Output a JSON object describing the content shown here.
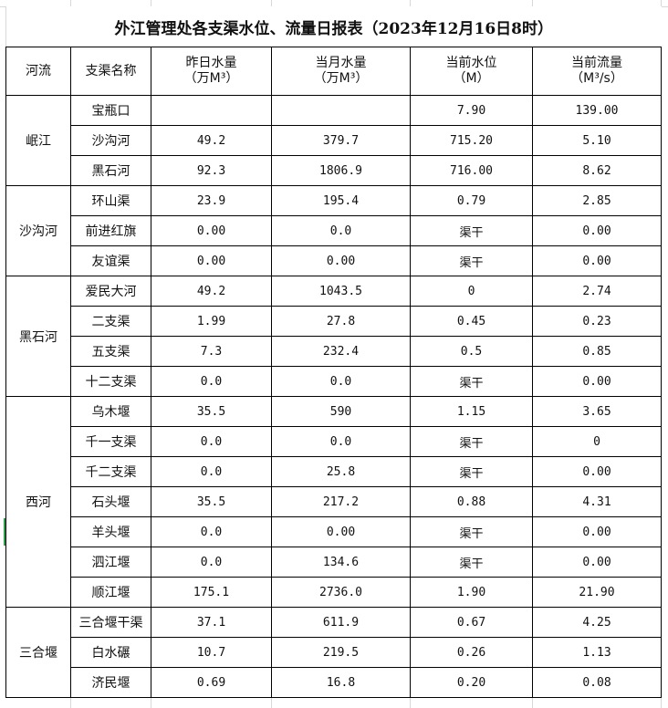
{
  "title": "外江管理处各支渠水位、流量日报表（2023年12月16日8时）",
  "headers": {
    "river": "河流",
    "branch": "支渠名称",
    "yesterday": "昨日水量",
    "yesterday_unit": "（万M³）",
    "month": "当月水量",
    "month_unit": "（万M³）",
    "level": "当前水位",
    "level_unit": "（M）",
    "flow": "当前流量",
    "flow_unit": "（M³/s）"
  },
  "groups": [
    {
      "river": "岷江",
      "rows": [
        [
          "宝瓶口",
          "",
          "",
          "7.90",
          "139.00"
        ],
        [
          "沙沟河",
          "49.2",
          "379.7",
          "715.20",
          "5.10"
        ],
        [
          "黑石河",
          "92.3",
          "1806.9",
          "716.00",
          "8.62"
        ]
      ]
    },
    {
      "river": "沙沟河",
      "rows": [
        [
          "环山渠",
          "23.9",
          "195.4",
          "0.79",
          "2.85"
        ],
        [
          "前进红旗",
          "0.00",
          "0.0",
          "渠干",
          "0.00"
        ],
        [
          "友谊渠",
          "0.00",
          "0.00",
          "渠干",
          "0.00"
        ]
      ]
    },
    {
      "river": "黑石河",
      "rows": [
        [
          "爱民大河",
          "49.2",
          "1043.5",
          "0",
          "2.74"
        ],
        [
          "二支渠",
          "1.99",
          "27.8",
          "0.45",
          "0.23"
        ],
        [
          "五支渠",
          "7.3",
          "232.4",
          "0.5",
          "0.85"
        ],
        [
          "十二支渠",
          "0.0",
          "0.0",
          "渠干",
          "0.00"
        ]
      ]
    },
    {
      "river": "西河",
      "rows": [
        [
          "乌木堰",
          "35.5",
          "590",
          "1.15",
          "3.65"
        ],
        [
          "千一支渠",
          "0.0",
          "0.0",
          "渠干",
          "0"
        ],
        [
          "千二支渠",
          "0.0",
          "25.8",
          "渠干",
          "0.00"
        ],
        [
          "石头堰",
          "35.5",
          "217.2",
          "0.88",
          "4.31"
        ],
        [
          "羊头堰",
          "0.0",
          "0.00",
          "渠干",
          "0.00"
        ],
        [
          "泗江堰",
          "0.0",
          "134.6",
          "渠干",
          "0.00"
        ],
        [
          "顺江堰",
          "175.1",
          "2736.0",
          "1.90",
          "21.90"
        ]
      ]
    },
    {
      "river": "三合堰",
      "rows": [
        [
          "三合堰干渠",
          "37.1",
          "611.9",
          "0.67",
          "4.25"
        ],
        [
          "白水碾",
          "10.7",
          "219.5",
          "0.26",
          "1.13"
        ],
        [
          "济民堰",
          "0.69",
          "16.8",
          "0.20",
          "0.08"
        ]
      ]
    }
  ]
}
